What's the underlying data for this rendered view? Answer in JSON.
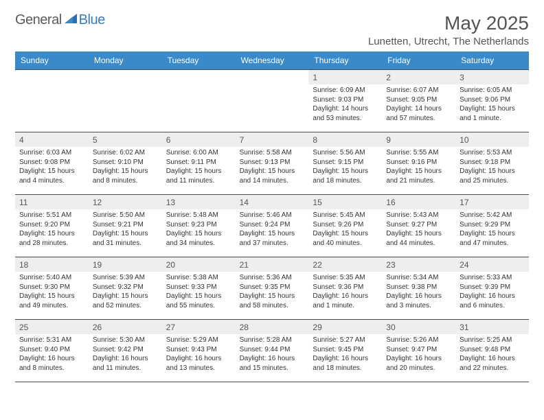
{
  "brand": {
    "part1": "General",
    "part2": "Blue"
  },
  "title": "May 2025",
  "location": "Lunetten, Utrecht, The Netherlands",
  "colors": {
    "header_bg": "#3a8ac9",
    "header_fg": "#ffffff",
    "daynum_bg": "#eeeeee",
    "text": "#333333",
    "border": "#4a4a4a",
    "brand_gray": "#5a5a5a",
    "brand_blue": "#3a7bbf"
  },
  "daynames": [
    "Sunday",
    "Monday",
    "Tuesday",
    "Wednesday",
    "Thursday",
    "Friday",
    "Saturday"
  ],
  "weeks": [
    [
      {
        "day": "",
        "sunrise": "",
        "sunset": "",
        "daylight": ""
      },
      {
        "day": "",
        "sunrise": "",
        "sunset": "",
        "daylight": ""
      },
      {
        "day": "",
        "sunrise": "",
        "sunset": "",
        "daylight": ""
      },
      {
        "day": "",
        "sunrise": "",
        "sunset": "",
        "daylight": ""
      },
      {
        "day": "1",
        "sunrise": "Sunrise: 6:09 AM",
        "sunset": "Sunset: 9:03 PM",
        "daylight": "Daylight: 14 hours and 53 minutes."
      },
      {
        "day": "2",
        "sunrise": "Sunrise: 6:07 AM",
        "sunset": "Sunset: 9:05 PM",
        "daylight": "Daylight: 14 hours and 57 minutes."
      },
      {
        "day": "3",
        "sunrise": "Sunrise: 6:05 AM",
        "sunset": "Sunset: 9:06 PM",
        "daylight": "Daylight: 15 hours and 1 minute."
      }
    ],
    [
      {
        "day": "4",
        "sunrise": "Sunrise: 6:03 AM",
        "sunset": "Sunset: 9:08 PM",
        "daylight": "Daylight: 15 hours and 4 minutes."
      },
      {
        "day": "5",
        "sunrise": "Sunrise: 6:02 AM",
        "sunset": "Sunset: 9:10 PM",
        "daylight": "Daylight: 15 hours and 8 minutes."
      },
      {
        "day": "6",
        "sunrise": "Sunrise: 6:00 AM",
        "sunset": "Sunset: 9:11 PM",
        "daylight": "Daylight: 15 hours and 11 minutes."
      },
      {
        "day": "7",
        "sunrise": "Sunrise: 5:58 AM",
        "sunset": "Sunset: 9:13 PM",
        "daylight": "Daylight: 15 hours and 14 minutes."
      },
      {
        "day": "8",
        "sunrise": "Sunrise: 5:56 AM",
        "sunset": "Sunset: 9:15 PM",
        "daylight": "Daylight: 15 hours and 18 minutes."
      },
      {
        "day": "9",
        "sunrise": "Sunrise: 5:55 AM",
        "sunset": "Sunset: 9:16 PM",
        "daylight": "Daylight: 15 hours and 21 minutes."
      },
      {
        "day": "10",
        "sunrise": "Sunrise: 5:53 AM",
        "sunset": "Sunset: 9:18 PM",
        "daylight": "Daylight: 15 hours and 25 minutes."
      }
    ],
    [
      {
        "day": "11",
        "sunrise": "Sunrise: 5:51 AM",
        "sunset": "Sunset: 9:20 PM",
        "daylight": "Daylight: 15 hours and 28 minutes."
      },
      {
        "day": "12",
        "sunrise": "Sunrise: 5:50 AM",
        "sunset": "Sunset: 9:21 PM",
        "daylight": "Daylight: 15 hours and 31 minutes."
      },
      {
        "day": "13",
        "sunrise": "Sunrise: 5:48 AM",
        "sunset": "Sunset: 9:23 PM",
        "daylight": "Daylight: 15 hours and 34 minutes."
      },
      {
        "day": "14",
        "sunrise": "Sunrise: 5:46 AM",
        "sunset": "Sunset: 9:24 PM",
        "daylight": "Daylight: 15 hours and 37 minutes."
      },
      {
        "day": "15",
        "sunrise": "Sunrise: 5:45 AM",
        "sunset": "Sunset: 9:26 PM",
        "daylight": "Daylight: 15 hours and 40 minutes."
      },
      {
        "day": "16",
        "sunrise": "Sunrise: 5:43 AM",
        "sunset": "Sunset: 9:27 PM",
        "daylight": "Daylight: 15 hours and 44 minutes."
      },
      {
        "day": "17",
        "sunrise": "Sunrise: 5:42 AM",
        "sunset": "Sunset: 9:29 PM",
        "daylight": "Daylight: 15 hours and 47 minutes."
      }
    ],
    [
      {
        "day": "18",
        "sunrise": "Sunrise: 5:40 AM",
        "sunset": "Sunset: 9:30 PM",
        "daylight": "Daylight: 15 hours and 49 minutes."
      },
      {
        "day": "19",
        "sunrise": "Sunrise: 5:39 AM",
        "sunset": "Sunset: 9:32 PM",
        "daylight": "Daylight: 15 hours and 52 minutes."
      },
      {
        "day": "20",
        "sunrise": "Sunrise: 5:38 AM",
        "sunset": "Sunset: 9:33 PM",
        "daylight": "Daylight: 15 hours and 55 minutes."
      },
      {
        "day": "21",
        "sunrise": "Sunrise: 5:36 AM",
        "sunset": "Sunset: 9:35 PM",
        "daylight": "Daylight: 15 hours and 58 minutes."
      },
      {
        "day": "22",
        "sunrise": "Sunrise: 5:35 AM",
        "sunset": "Sunset: 9:36 PM",
        "daylight": "Daylight: 16 hours and 1 minute."
      },
      {
        "day": "23",
        "sunrise": "Sunrise: 5:34 AM",
        "sunset": "Sunset: 9:38 PM",
        "daylight": "Daylight: 16 hours and 3 minutes."
      },
      {
        "day": "24",
        "sunrise": "Sunrise: 5:33 AM",
        "sunset": "Sunset: 9:39 PM",
        "daylight": "Daylight: 16 hours and 6 minutes."
      }
    ],
    [
      {
        "day": "25",
        "sunrise": "Sunrise: 5:31 AM",
        "sunset": "Sunset: 9:40 PM",
        "daylight": "Daylight: 16 hours and 8 minutes."
      },
      {
        "day": "26",
        "sunrise": "Sunrise: 5:30 AM",
        "sunset": "Sunset: 9:42 PM",
        "daylight": "Daylight: 16 hours and 11 minutes."
      },
      {
        "day": "27",
        "sunrise": "Sunrise: 5:29 AM",
        "sunset": "Sunset: 9:43 PM",
        "daylight": "Daylight: 16 hours and 13 minutes."
      },
      {
        "day": "28",
        "sunrise": "Sunrise: 5:28 AM",
        "sunset": "Sunset: 9:44 PM",
        "daylight": "Daylight: 16 hours and 15 minutes."
      },
      {
        "day": "29",
        "sunrise": "Sunrise: 5:27 AM",
        "sunset": "Sunset: 9:45 PM",
        "daylight": "Daylight: 16 hours and 18 minutes."
      },
      {
        "day": "30",
        "sunrise": "Sunrise: 5:26 AM",
        "sunset": "Sunset: 9:47 PM",
        "daylight": "Daylight: 16 hours and 20 minutes."
      },
      {
        "day": "31",
        "sunrise": "Sunrise: 5:25 AM",
        "sunset": "Sunset: 9:48 PM",
        "daylight": "Daylight: 16 hours and 22 minutes."
      }
    ]
  ]
}
